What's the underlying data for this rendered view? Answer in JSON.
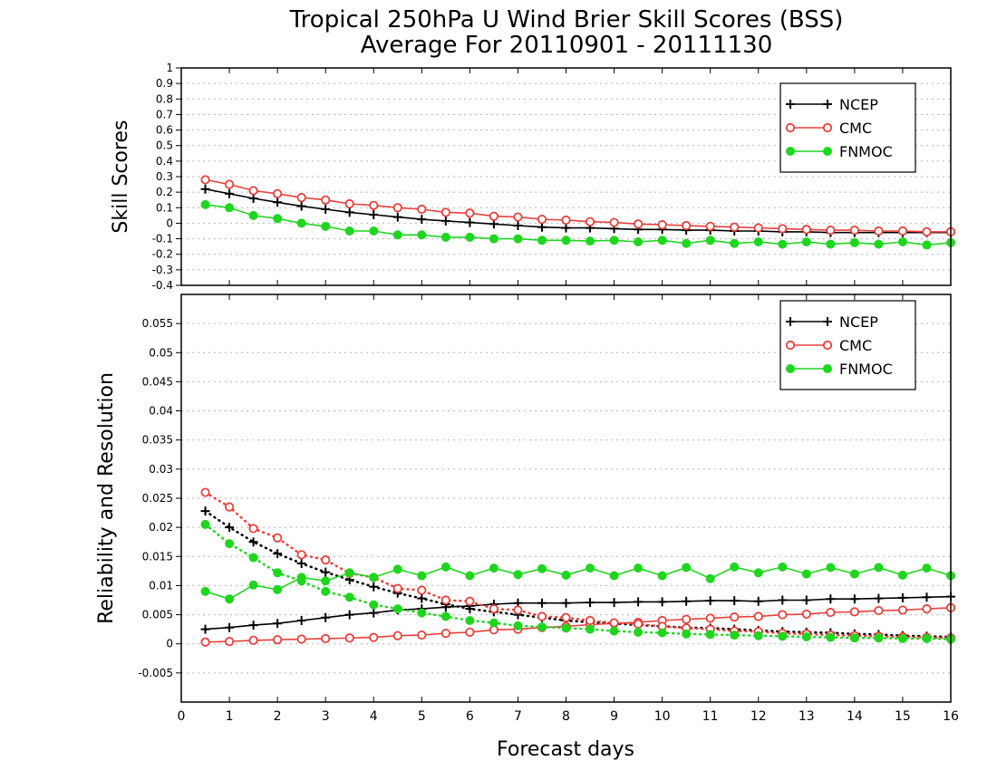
{
  "title_line1": "Tropical 250hPa U Wind Brier Skill Scores (BSS)",
  "title_line2": "Average For 20110901 - 20111130",
  "xlabel": "Forecast days",
  "chart_data": [
    {
      "type": "line",
      "ylabel": "Skill Scores",
      "ylim": [
        -0.4,
        1
      ],
      "xlim": [
        0,
        16
      ],
      "grid": true,
      "legend_position": "top-right",
      "x": [
        0.5,
        1,
        1.5,
        2,
        2.5,
        3,
        3.5,
        4,
        4.5,
        5,
        5.5,
        6,
        6.5,
        7,
        7.5,
        8,
        8.5,
        9,
        9.5,
        10,
        10.5,
        11,
        11.5,
        12,
        12.5,
        13,
        13.5,
        14,
        14.5,
        15,
        15.5,
        16
      ],
      "series": [
        {
          "name": "NCEP",
          "color": "#000000",
          "marker": "plus",
          "values": [
            0.22,
            0.19,
            0.16,
            0.135,
            0.11,
            0.09,
            0.07,
            0.055,
            0.04,
            0.025,
            0.015,
            0.005,
            -0.005,
            -0.015,
            -0.025,
            -0.03,
            -0.03,
            -0.035,
            -0.04,
            -0.04,
            -0.045,
            -0.045,
            -0.05,
            -0.05,
            -0.055,
            -0.055,
            -0.06,
            -0.06,
            -0.06,
            -0.06,
            -0.06,
            -0.06
          ]
        },
        {
          "name": "CMC",
          "color": "#e8413c",
          "marker": "open-circle",
          "values": [
            0.28,
            0.25,
            0.21,
            0.19,
            0.165,
            0.15,
            0.125,
            0.115,
            0.1,
            0.09,
            0.07,
            0.065,
            0.045,
            0.04,
            0.025,
            0.02,
            0.01,
            0.005,
            -0.005,
            -0.01,
            -0.015,
            -0.02,
            -0.025,
            -0.03,
            -0.035,
            -0.04,
            -0.045,
            -0.045,
            -0.05,
            -0.05,
            -0.055,
            -0.055
          ]
        },
        {
          "name": "FNMOC",
          "color": "#1fd61f",
          "marker": "filled-circle",
          "values": [
            0.12,
            0.1,
            0.05,
            0.03,
            0.0,
            -0.02,
            -0.05,
            -0.05,
            -0.075,
            -0.075,
            -0.09,
            -0.09,
            -0.1,
            -0.1,
            -0.11,
            -0.11,
            -0.115,
            -0.11,
            -0.12,
            -0.11,
            -0.13,
            -0.11,
            -0.13,
            -0.12,
            -0.135,
            -0.12,
            -0.135,
            -0.125,
            -0.135,
            -0.12,
            -0.14,
            -0.125
          ]
        }
      ]
    },
    {
      "type": "line",
      "ylabel": "Reliability and Resolution",
      "ylim": [
        -0.01,
        0.06
      ],
      "xlim": [
        0,
        16
      ],
      "grid": true,
      "legend_position": "top-right",
      "x": [
        0.5,
        1,
        1.5,
        2,
        2.5,
        3,
        3.5,
        4,
        4.5,
        5,
        5.5,
        6,
        6.5,
        7,
        7.5,
        8,
        8.5,
        9,
        9.5,
        10,
        10.5,
        11,
        11.5,
        12,
        12.5,
        13,
        13.5,
        14,
        14.5,
        15,
        15.5,
        16
      ],
      "series": [
        {
          "name": "NCEP",
          "color": "#000000",
          "marker": "plus",
          "line": "solid",
          "values": [
            0.0025,
            0.0028,
            0.0032,
            0.0035,
            0.004,
            0.0045,
            0.005,
            0.0053,
            0.0058,
            0.006,
            0.0063,
            0.0065,
            0.0068,
            0.007,
            0.007,
            0.007,
            0.0071,
            0.0071,
            0.0072,
            0.0072,
            0.0073,
            0.0074,
            0.0074,
            0.0073,
            0.0075,
            0.0075,
            0.0077,
            0.0077,
            0.0078,
            0.0079,
            0.008,
            0.0081
          ]
        },
        {
          "name": "NCEP",
          "color": "#000000",
          "marker": "plus",
          "line": "dotted",
          "values": [
            0.0228,
            0.02,
            0.0175,
            0.0155,
            0.0138,
            0.0123,
            0.011,
            0.0098,
            0.0087,
            0.0078,
            0.0068,
            0.006,
            0.0055,
            0.005,
            0.0045,
            0.004,
            0.0037,
            0.0035,
            0.0032,
            0.003,
            0.0028,
            0.0027,
            0.0025,
            0.0023,
            0.0021,
            0.002,
            0.0019,
            0.0017,
            0.0016,
            0.0014,
            0.0013,
            0.0012
          ]
        },
        {
          "name": "CMC",
          "color": "#e8413c",
          "marker": "open-circle",
          "line": "solid",
          "values": [
            0.0003,
            0.0004,
            0.0006,
            0.0007,
            0.0008,
            0.0009,
            0.001,
            0.0011,
            0.0014,
            0.0015,
            0.0018,
            0.002,
            0.0024,
            0.0025,
            0.0028,
            0.003,
            0.0033,
            0.0035,
            0.0037,
            0.004,
            0.0042,
            0.0044,
            0.0046,
            0.0047,
            0.005,
            0.0051,
            0.0054,
            0.0055,
            0.0057,
            0.0058,
            0.006,
            0.0062
          ]
        },
        {
          "name": "CMC",
          "color": "#e8413c",
          "marker": "open-circle",
          "line": "dotted",
          "values": [
            0.026,
            0.0235,
            0.0198,
            0.0182,
            0.0153,
            0.0144,
            0.0121,
            0.0114,
            0.0095,
            0.0092,
            0.0075,
            0.0073,
            0.006,
            0.0058,
            0.0047,
            0.0045,
            0.004,
            0.0036,
            0.0034,
            0.003,
            0.0027,
            0.0025,
            0.0022,
            0.0021,
            0.0018,
            0.0017,
            0.0015,
            0.0014,
            0.0013,
            0.0012,
            0.0011,
            0.001
          ]
        },
        {
          "name": "FNMOC",
          "color": "#1fd61f",
          "marker": "filled-circle",
          "line": "solid",
          "values": [
            0.009,
            0.0077,
            0.0101,
            0.0093,
            0.0114,
            0.0108,
            0.0122,
            0.0114,
            0.0128,
            0.0117,
            0.0132,
            0.0117,
            0.013,
            0.0119,
            0.0129,
            0.0118,
            0.013,
            0.0117,
            0.013,
            0.0117,
            0.0131,
            0.0112,
            0.0132,
            0.0122,
            0.0132,
            0.012,
            0.0131,
            0.012,
            0.0131,
            0.0118,
            0.013,
            0.0117
          ]
        },
        {
          "name": "FNMOC",
          "color": "#1fd61f",
          "marker": "filled-circle",
          "line": "dotted",
          "values": [
            0.0205,
            0.0172,
            0.0148,
            0.0122,
            0.0108,
            0.009,
            0.008,
            0.0067,
            0.006,
            0.0053,
            0.0047,
            0.004,
            0.0036,
            0.0031,
            0.0029,
            0.0027,
            0.0025,
            0.0022,
            0.002,
            0.0019,
            0.0017,
            0.0016,
            0.0015,
            0.0014,
            0.0013,
            0.0012,
            0.0011,
            0.001,
            0.001,
            0.0009,
            0.0009,
            0.0008
          ]
        }
      ]
    }
  ],
  "legend": [
    "NCEP",
    "CMC",
    "FNMOC"
  ],
  "x_ticks": [
    "0",
    "1",
    "2",
    "3",
    "4",
    "5",
    "6",
    "7",
    "8",
    "9",
    "10",
    "11",
    "12",
    "13",
    "14",
    "15",
    "16"
  ],
  "top_y_ticks": [
    "-0.4",
    "-0.3",
    "-0.2",
    "-0.1",
    "0",
    "0.1",
    "0.2",
    "0.3",
    "0.4",
    "0.5",
    "0.6",
    "0.7",
    "0.8",
    "0.9",
    "1"
  ],
  "bottom_y_ticks": [
    "-0.005",
    "0",
    "0.005",
    "0.01",
    "0.015",
    "0.02",
    "0.025",
    "0.03",
    "0.035",
    "0.04",
    "0.045",
    "0.05",
    "0.055"
  ]
}
